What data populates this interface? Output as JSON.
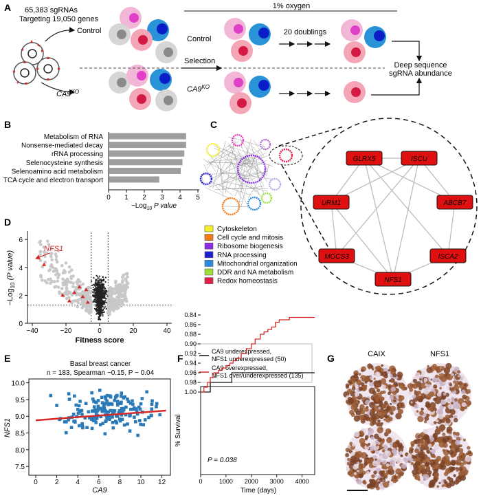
{
  "colors": {
    "pink_light": "#f2b6d6",
    "pink_dark": "#e040c8",
    "blue_light": "#2a93d8",
    "blue_dark": "#0a1ec8",
    "rose_light": "#f4a6b6",
    "rose_dark": "#d41a44",
    "gray_light": "#d6d6d6",
    "gray_dark": "#8a8a8a",
    "bar": "#9e9e9e",
    "highlight": "#d62728",
    "scatter": "#2a7ab8",
    "node": "#e01010"
  },
  "panelA": {
    "letter": "A",
    "n_sgrnas": "65,383 sgRNAs",
    "targeting": "Targeting 19,050 genes",
    "control": "Control",
    "ca9ko": "CA9",
    "ko_sup": "KO",
    "oxygen": "1% oxygen",
    "selection": "Selection",
    "doublings": "20 doublings",
    "readout_1": "Deep sequence",
    "readout_2": "sgRNA abundance"
  },
  "panelB": {
    "letter": "B",
    "labels": [
      "Metabolism of RNA",
      "Nonsense-mediated decay",
      "rRNA processing",
      "Selenocysteine synthesis",
      "Selenoamino acid metabolism",
      "TCA cycle and electron transport"
    ],
    "values": [
      4.3,
      4.3,
      4.2,
      4.1,
      4.0,
      2.8
    ],
    "ticks": [
      "0",
      "1",
      "2",
      "3",
      "4",
      "5"
    ],
    "xlabel": "−Log",
    "xlabel_sub": "10",
    "xlabel_rest": " P value"
  },
  "panelC": {
    "letter": "C",
    "legend": [
      {
        "label": "Cytoskeleton",
        "color": "#f3ef2e"
      },
      {
        "label": "Cell cycle and mitosis",
        "color": "#f07a1a"
      },
      {
        "label": "Ribosome biogenesis",
        "color": "#8a2be2"
      },
      {
        "label": "RNA processing",
        "color": "#2020d0"
      },
      {
        "label": "Mitochondrial organization",
        "color": "#2a8ae0"
      },
      {
        "label": "DDR and NA metabolism",
        "color": "#9ee03a"
      },
      {
        "label": "Redox homeostasis",
        "color": "#e0204a"
      }
    ],
    "genes": [
      "GLRX5",
      "ISCU",
      "URM1",
      "ABCB7",
      "MOCS3",
      "ISCA2",
      "NFS1"
    ]
  },
  "panelD": {
    "letter": "D",
    "annotation": "NFS1",
    "xlabel": "Fitness score",
    "ylabel": "−Log",
    "ylabel_sub": "10",
    "ylabel_rest": " (P value)",
    "xticks": [
      "−40",
      "−20",
      "0",
      "20",
      "40"
    ],
    "yticks": [
      "0",
      "2",
      "4",
      "6"
    ]
  },
  "panelE": {
    "letter": "E",
    "title_1": "Basal breast cancer",
    "title_2": "n = 183, Spearman ~0.15, P ~ 0.04",
    "xlabel": "CA9",
    "ylabel": "NFS1",
    "xticks": [
      "0",
      "2",
      "4",
      "6",
      "8",
      "10",
      "12"
    ],
    "yticks": [
      "7.5",
      "8.0",
      "8.5",
      "9.0",
      "9.5",
      "10.0"
    ]
  },
  "panelF": {
    "letter": "F",
    "legend_1a": "CA9 underexpressed,",
    "legend_1b": "NFS1 underexpressed (50)",
    "legend_2a": "CA9 overexpressed,",
    "legend_2b": "NFS1 over/underexpressed (135)",
    "pvalue": "P = 0.038",
    "xlabel": "Time (days)",
    "ylabel": "% Survival",
    "xticks": [
      "0",
      "1000",
      "2000",
      "3000",
      "4000"
    ],
    "yticks": [
      "0.84",
      "0.86",
      "0.88",
      "0.90",
      "0.92",
      "0.94",
      "0.96",
      "0.98",
      "1.00"
    ]
  },
  "panelG": {
    "letter": "G",
    "col1": "CAIX",
    "col2": "NFS1"
  }
}
